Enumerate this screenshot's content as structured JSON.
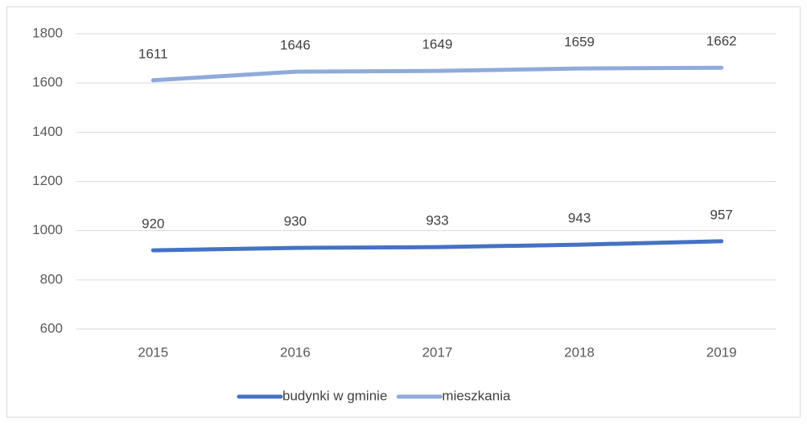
{
  "chart_data": {
    "type": "line",
    "categories": [
      "2015",
      "2016",
      "2017",
      "2018",
      "2019"
    ],
    "series": [
      {
        "name": "budynki w gminie",
        "color": "#4472c4",
        "values": [
          920,
          930,
          933,
          943,
          957
        ]
      },
      {
        "name": "mieszkania",
        "color": "#8faadc",
        "values": [
          1611,
          1646,
          1649,
          1659,
          1662
        ]
      }
    ],
    "ylim": [
      600,
      1800
    ],
    "yticks": [
      600,
      800,
      1000,
      1200,
      1400,
      1600,
      1800
    ],
    "grid": true,
    "legend": "bottom"
  }
}
